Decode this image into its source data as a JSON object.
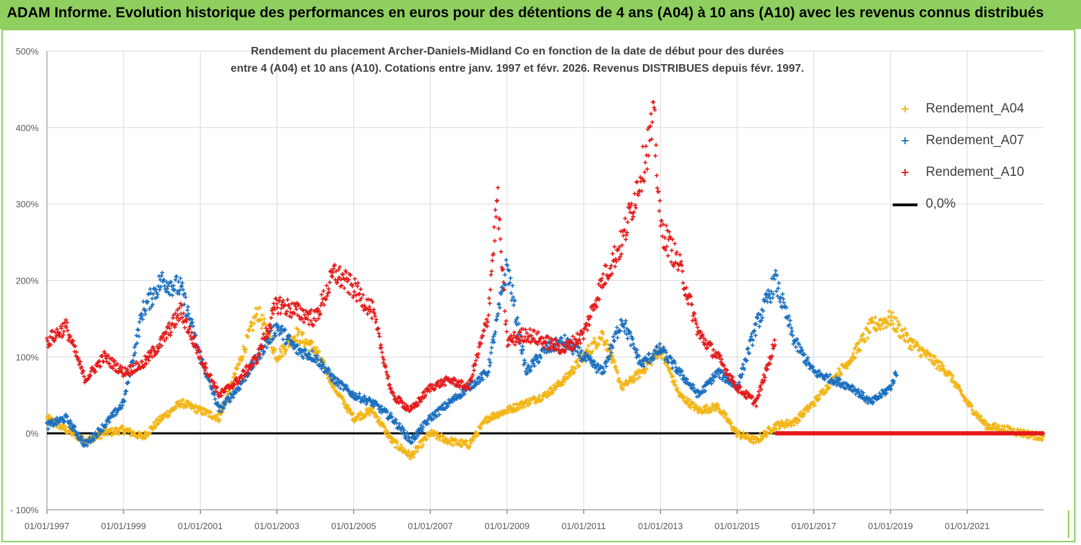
{
  "header": {
    "title": "ADAM Informe. Evolution historique des performances en euros pour des détentions de 4 ans (A04) à 10 ans (A10) avec les revenus connus distribués"
  },
  "chart_data": {
    "type": "scatter",
    "subtitle_lines": [
      "Rendement du placement Archer-Daniels-Midland Co en fonction de la date de début pour des durées",
      "entre 4 (A04) et 10 ans (A10). Cotations entre janv. 1997 et févr. 2026. Revenus DISTRIBUES depuis févr. 1997."
    ],
    "x_range": [
      "1997-01-01",
      "2022-12-31"
    ],
    "x_ticks": [
      "01/01/1997",
      "01/01/1999",
      "01/01/2001",
      "01/01/2003",
      "01/01/2005",
      "01/01/2007",
      "01/01/2009",
      "01/01/2011",
      "01/01/2013",
      "01/01/2015",
      "01/01/2017",
      "01/01/2019",
      "01/01/2021"
    ],
    "y_ticks": [
      "500%",
      "400%",
      "300%",
      "200%",
      "100%",
      "0%",
      "- 100%"
    ],
    "ylim": [
      -100,
      500
    ],
    "grid": true,
    "legend_position": "top-right",
    "colors": {
      "A04": "#f2b515",
      "A07": "#1b6fbf",
      "A10": "#e41b1b",
      "zero": "#000000"
    },
    "series": [
      {
        "name": "Rendement_A04",
        "key": "A04",
        "x": [
          "1997-01-01",
          "1997-07-01",
          "1998-01-01",
          "1998-07-01",
          "1999-01-01",
          "1999-07-01",
          "2000-01-01",
          "2000-07-01",
          "2001-01-01",
          "2001-07-01",
          "2002-01-01",
          "2002-07-01",
          "2003-01-01",
          "2003-07-01",
          "2004-01-01",
          "2004-07-01",
          "2005-01-01",
          "2005-07-01",
          "2006-01-01",
          "2006-07-01",
          "2007-01-01",
          "2007-07-01",
          "2008-01-01",
          "2008-07-01",
          "2009-01-01",
          "2009-07-01",
          "2010-01-01",
          "2010-07-01",
          "2011-01-01",
          "2011-07-01",
          "2012-01-01",
          "2012-07-01",
          "2013-01-01",
          "2013-07-01",
          "2014-01-01",
          "2014-07-01",
          "2015-01-01",
          "2015-07-01",
          "2016-01-01",
          "2016-07-01",
          "2017-01-01",
          "2017-07-01",
          "2018-01-01",
          "2018-07-01",
          "2019-01-01",
          "2019-07-01",
          "2020-01-01",
          "2020-07-01",
          "2021-01-01",
          "2021-07-01",
          "2022-01-01",
          "2022-07-01",
          "2022-12-31"
        ],
        "y": [
          20,
          5,
          -10,
          0,
          5,
          -5,
          20,
          40,
          30,
          20,
          90,
          160,
          100,
          130,
          110,
          60,
          20,
          30,
          -10,
          -30,
          0,
          -10,
          -15,
          20,
          30,
          40,
          50,
          70,
          100,
          130,
          60,
          80,
          110,
          50,
          30,
          35,
          0,
          -10,
          10,
          15,
          40,
          70,
          100,
          140,
          150,
          120,
          100,
          80,
          40,
          10,
          5,
          0,
          -5
        ]
      },
      {
        "name": "Rendement_A07",
        "key": "A07",
        "x": [
          "1997-01-01",
          "1997-07-01",
          "1998-01-01",
          "1998-07-01",
          "1999-01-01",
          "1999-07-01",
          "2000-01-01",
          "2000-07-01",
          "2001-01-01",
          "2001-07-01",
          "2002-01-01",
          "2002-07-01",
          "2003-01-01",
          "2003-07-01",
          "2004-01-01",
          "2004-07-01",
          "2005-01-01",
          "2005-07-01",
          "2006-01-01",
          "2006-07-01",
          "2007-01-01",
          "2007-07-01",
          "2008-01-01",
          "2008-07-01",
          "2009-01-01",
          "2009-07-01",
          "2010-01-01",
          "2010-07-01",
          "2011-01-01",
          "2011-07-01",
          "2012-01-01",
          "2012-07-01",
          "2013-01-01",
          "2013-07-01",
          "2014-01-01",
          "2014-07-01",
          "2015-01-01",
          "2015-07-01",
          "2016-01-01",
          "2016-07-01",
          "2017-01-01",
          "2017-07-01",
          "2018-01-01",
          "2018-07-01",
          "2019-01-01",
          "2019-03-01"
        ],
        "y": [
          10,
          20,
          -15,
          10,
          40,
          160,
          200,
          190,
          100,
          30,
          60,
          100,
          140,
          110,
          100,
          70,
          50,
          40,
          20,
          -10,
          20,
          40,
          60,
          80,
          220,
          80,
          110,
          120,
          100,
          80,
          150,
          90,
          110,
          80,
          50,
          80,
          60,
          140,
          200,
          120,
          80,
          70,
          60,
          40,
          60,
          80
        ]
      },
      {
        "name": "Rendement_A10",
        "key": "A10",
        "x": [
          "1997-01-01",
          "1997-07-01",
          "1998-01-01",
          "1998-07-01",
          "1999-01-01",
          "1999-07-01",
          "2000-01-01",
          "2000-07-01",
          "2001-01-01",
          "2001-07-01",
          "2002-01-01",
          "2002-07-01",
          "2003-01-01",
          "2003-07-01",
          "2004-01-01",
          "2004-07-01",
          "2005-01-01",
          "2005-07-01",
          "2006-01-01",
          "2006-07-01",
          "2007-01-01",
          "2007-07-01",
          "2008-01-01",
          "2008-07-01",
          "2008-10-01",
          "2009-01-01",
          "2009-07-01",
          "2010-01-01",
          "2010-07-01",
          "2011-01-01",
          "2011-07-01",
          "2012-01-01",
          "2012-07-01",
          "2012-11-01",
          "2013-01-01",
          "2013-07-01",
          "2014-01-01",
          "2014-07-01",
          "2015-01-01",
          "2015-07-01",
          "2016-01-01",
          "2016-01-02",
          "2016-07-01",
          "2017-01-01",
          "2017-07-01",
          "2018-01-01",
          "2018-07-01",
          "2019-01-01",
          "2019-07-01",
          "2020-01-01",
          "2020-07-01",
          "2021-01-01",
          "2021-07-01",
          "2022-01-01",
          "2022-07-01",
          "2022-12-31"
        ],
        "y": [
          120,
          140,
          70,
          100,
          80,
          90,
          120,
          160,
          100,
          50,
          70,
          100,
          170,
          160,
          150,
          210,
          190,
          160,
          50,
          30,
          60,
          70,
          60,
          150,
          310,
          120,
          130,
          120,
          110,
          130,
          200,
          250,
          340,
          410,
          270,
          220,
          130,
          100,
          60,
          40,
          120,
          0,
          0,
          0,
          0,
          0,
          0,
          0,
          0,
          0,
          0,
          0,
          0,
          0,
          0,
          0
        ]
      }
    ],
    "zero_line": {
      "name": "0,0%",
      "value": 0
    }
  }
}
